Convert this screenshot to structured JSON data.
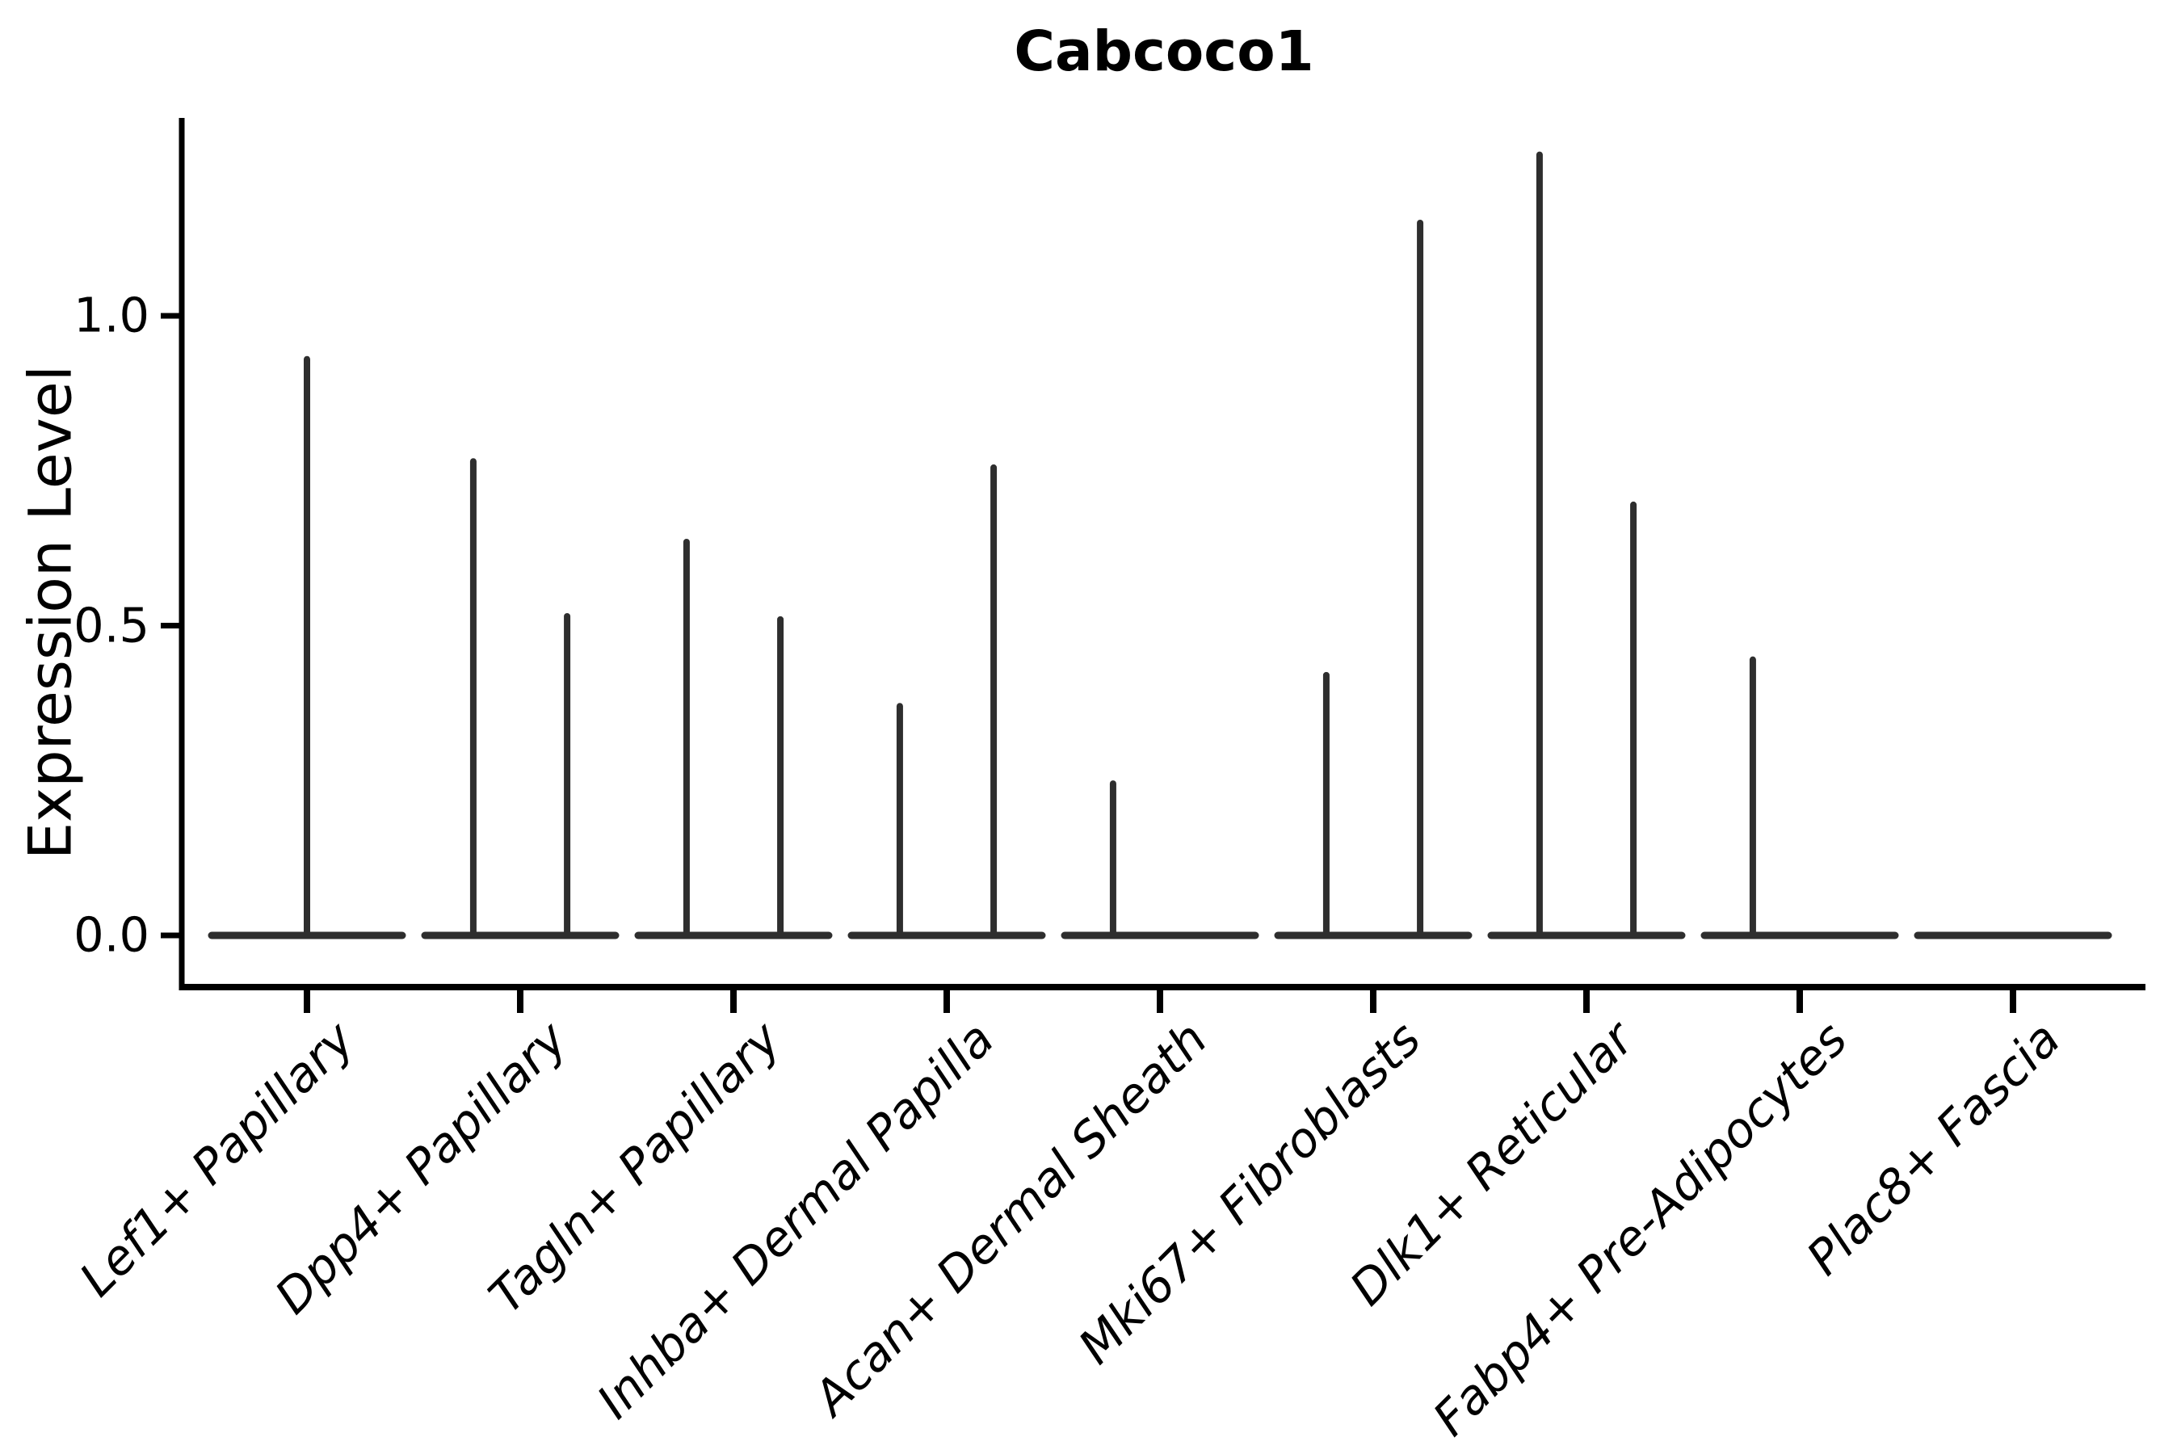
{
  "page": {
    "background": "#ffffff"
  },
  "chart_data": {
    "type": "violin",
    "title": "Cabcoco1",
    "xlabel": "",
    "ylabel": "Expression Level",
    "ylim": [
      0,
      1.32
    ],
    "yticks": [
      0,
      0.5,
      1.0
    ],
    "ytick_labels": [
      "0.0",
      "0.5",
      "1.0"
    ],
    "grid": false,
    "legend": "none",
    "categories": [
      "Lef1+ Papillary",
      "Dpp4+ Papillary",
      "Tagln+ Papillary",
      "Inhba+ Dermal Papilla",
      "Acan+ Dermal Sheath",
      "Mki67+ Fibroblasts",
      "Dlk1+ Reticular",
      "Fabp4+ Pre-Adipocytes",
      "Plac8+ Fascia"
    ],
    "violins": [
      {
        "category": "Lef1+ Papillary",
        "base_value": 0,
        "spikes": [
          {
            "offset_frac": 0,
            "max": 0.93
          }
        ]
      },
      {
        "category": "Dpp4+ Papillary",
        "base_value": 0,
        "spikes": [
          {
            "offset_frac": -0.22,
            "max": 0.765
          },
          {
            "offset_frac": 0.22,
            "max": 0.515
          }
        ]
      },
      {
        "category": "Tagln+ Papillary",
        "base_value": 0,
        "spikes": [
          {
            "offset_frac": -0.22,
            "max": 0.635
          },
          {
            "offset_frac": 0.22,
            "max": 0.51
          }
        ]
      },
      {
        "category": "Inhba+ Dermal Papilla",
        "base_value": 0,
        "spikes": [
          {
            "offset_frac": -0.22,
            "max": 0.37
          },
          {
            "offset_frac": 0.22,
            "max": 0.755
          }
        ]
      },
      {
        "category": "Acan+ Dermal Sheath",
        "base_value": 0,
        "spikes": [
          {
            "offset_frac": -0.22,
            "max": 0.245
          }
        ]
      },
      {
        "category": "Mki67+ Fibroblasts",
        "base_value": 0,
        "spikes": [
          {
            "offset_frac": -0.22,
            "max": 0.42
          },
          {
            "offset_frac": 0.22,
            "max": 1.15
          }
        ]
      },
      {
        "category": "Dlk1+ Reticular",
        "base_value": 0,
        "spikes": [
          {
            "offset_frac": -0.22,
            "max": 1.26
          },
          {
            "offset_frac": 0.22,
            "max": 0.695
          }
        ]
      },
      {
        "category": "Fabp4+ Pre-Adipocytes",
        "base_value": 0,
        "spikes": [
          {
            "offset_frac": -0.22,
            "max": 0.445
          }
        ]
      },
      {
        "category": "Plac8+ Fascia",
        "base_value": 0,
        "spikes": []
      }
    ],
    "colors": {
      "violin": "#2e2e2e",
      "axis": "#000000",
      "text": "#000000"
    },
    "style_note": "Each violin collapses to a flat horizontal bar at expression 0 with a thin density spike rising to the max expression value."
  }
}
